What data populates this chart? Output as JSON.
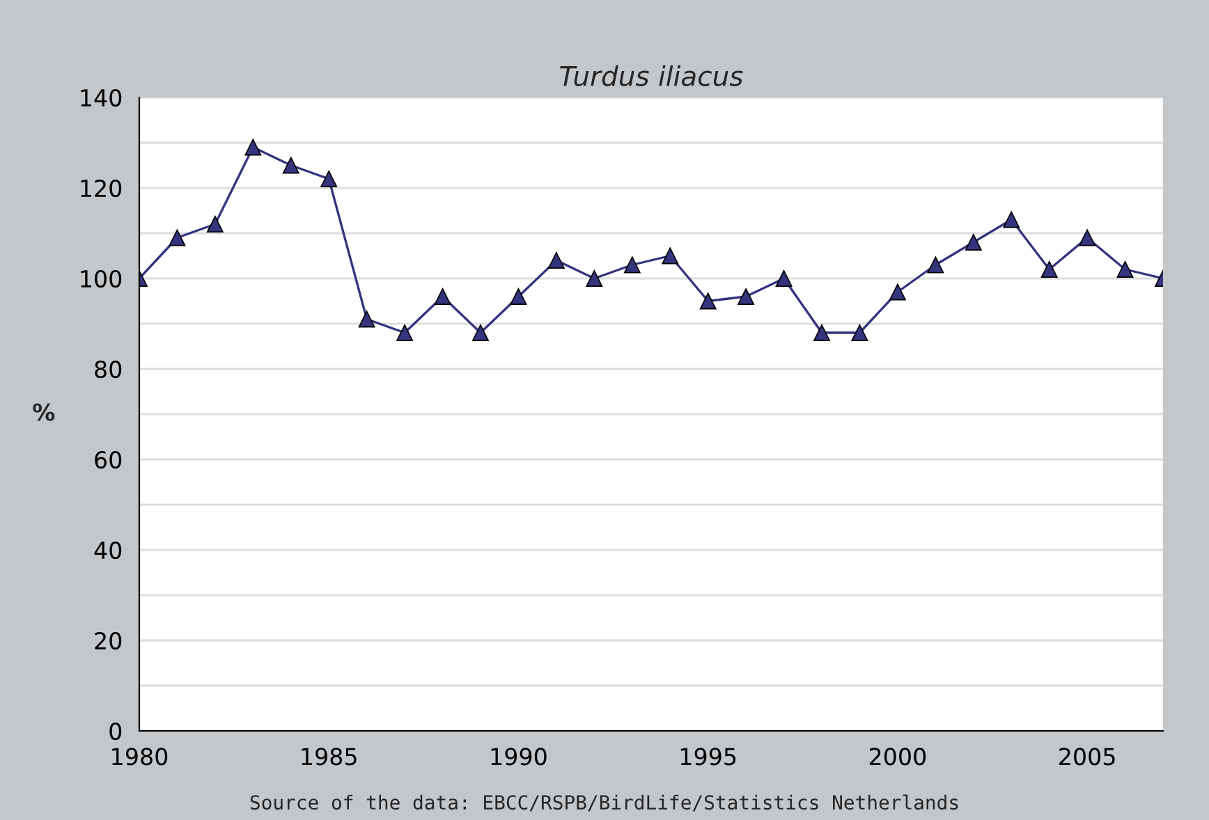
{
  "chart_data": {
    "type": "line",
    "title": "Turdus iliacus",
    "ylabel": "%",
    "x": [
      1980,
      1981,
      1982,
      1983,
      1984,
      1985,
      1986,
      1987,
      1988,
      1989,
      1990,
      1991,
      1992,
      1993,
      1994,
      1995,
      1996,
      1997,
      1998,
      1999,
      2000,
      2001,
      2002,
      2003,
      2004,
      2005,
      2006,
      2007
    ],
    "series": [
      {
        "color": "#34347f",
        "values": [
          100,
          109,
          112,
          129,
          125,
          122,
          91,
          88,
          96,
          88,
          96,
          104,
          100,
          103,
          105,
          95,
          96,
          100,
          88,
          88,
          97,
          103,
          108,
          113,
          102,
          109,
          102,
          100
        ]
      }
    ],
    "xlim": [
      1980,
      2007
    ],
    "xticks": [
      1980,
      1985,
      1990,
      1995,
      2000,
      2005
    ],
    "ylim": [
      0,
      140
    ],
    "yticks": [
      0,
      {
        "value": 10,
        "label": null
      },
      20,
      {
        "value": 30,
        "label": null
      },
      40,
      {
        "value": 50,
        "label": null
      },
      60,
      {
        "value": 70,
        "label": null
      },
      80,
      {
        "value": 90,
        "label": null
      },
      100,
      {
        "value": 110,
        "label": null
      },
      120,
      {
        "value": 130,
        "label": null
      },
      140
    ],
    "grid": "y",
    "marker": "triangle",
    "line_style": "solid",
    "legend": false,
    "annotations": [
      "Source of the data: EBCC/RSPB/BirdLife/Statistics Netherlands"
    ]
  }
}
